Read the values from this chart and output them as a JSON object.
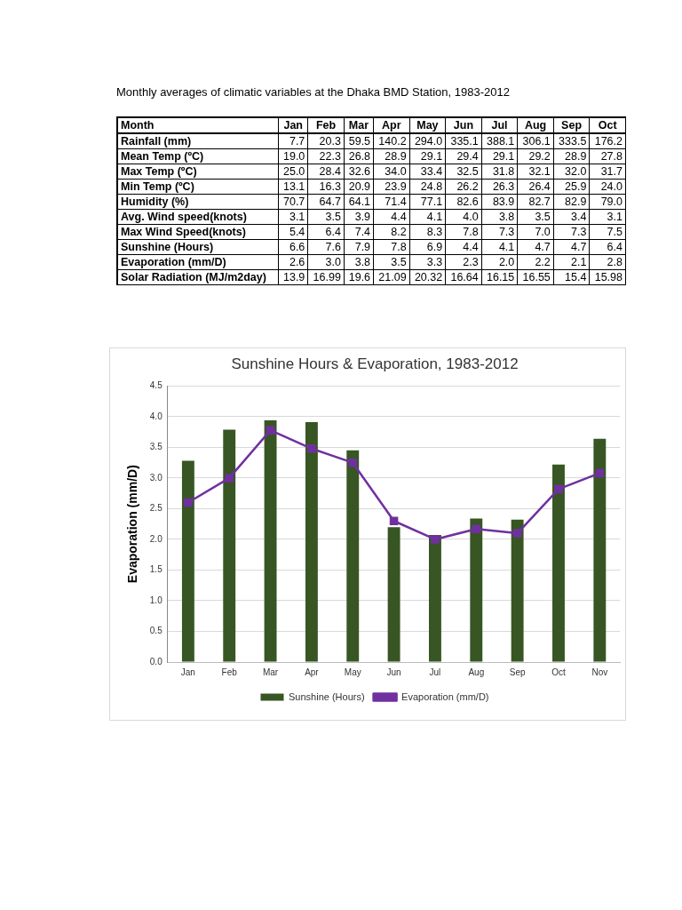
{
  "chart_data": [
    {
      "type": "other",
      "title": "Monthly averages of climatic variables at the Dhaka BMD Station, 1983-2012",
      "xlabel": "Month",
      "categories": [
        "Jan",
        "Feb",
        "Mar",
        "Apr",
        "May",
        "Jun",
        "Jul",
        "Aug",
        "Sep",
        "Oct"
      ],
      "series": [
        {
          "name": "Rainfall (mm)",
          "values": [
            7.7,
            20.3,
            59.5,
            140.2,
            294.0,
            335.1,
            388.1,
            306.1,
            333.5,
            176.2
          ],
          "value_labels": [
            "7.7",
            "20.3",
            "59.5",
            "140.2",
            "294.0",
            "335.1",
            "388.1",
            "306.1",
            "333.5",
            "176.2"
          ]
        },
        {
          "name": "Mean Temp (ºC)",
          "values": [
            19.0,
            22.3,
            26.8,
            28.9,
            29.1,
            29.4,
            29.1,
            29.2,
            28.9,
            27.8
          ],
          "value_labels": [
            "19.0",
            "22.3",
            "26.8",
            "28.9",
            "29.1",
            "29.4",
            "29.1",
            "29.2",
            "28.9",
            "27.8"
          ]
        },
        {
          "name": "Max Temp (ºC)",
          "values": [
            25.0,
            28.4,
            32.6,
            34.0,
            33.4,
            32.5,
            31.8,
            32.1,
            32.0,
            31.7
          ],
          "value_labels": [
            "25.0",
            "28.4",
            "32.6",
            "34.0",
            "33.4",
            "32.5",
            "31.8",
            "32.1",
            "32.0",
            "31.7"
          ]
        },
        {
          "name": "Min Temp (ºC)",
          "values": [
            13.1,
            16.3,
            20.9,
            23.9,
            24.8,
            26.2,
            26.3,
            26.4,
            25.9,
            24.0
          ],
          "value_labels": [
            "13.1",
            "16.3",
            "20.9",
            "23.9",
            "24.8",
            "26.2",
            "26.3",
            "26.4",
            "25.9",
            "24.0"
          ]
        },
        {
          "name": "Humidity (%)",
          "values": [
            70.7,
            64.7,
            64.1,
            71.4,
            77.1,
            82.6,
            83.9,
            82.7,
            82.9,
            79.0
          ],
          "value_labels": [
            "70.7",
            "64.7",
            "64.1",
            "71.4",
            "77.1",
            "82.6",
            "83.9",
            "82.7",
            "82.9",
            "79.0"
          ]
        },
        {
          "name": "Avg. Wind speed(knots)",
          "values": [
            3.1,
            3.5,
            3.9,
            4.4,
            4.1,
            4.0,
            3.8,
            3.5,
            3.4,
            3.1
          ],
          "value_labels": [
            "3.1",
            "3.5",
            "3.9",
            "4.4",
            "4.1",
            "4.0",
            "3.8",
            "3.5",
            "3.4",
            "3.1"
          ]
        },
        {
          "name": "Max Wind Speed(knots)",
          "values": [
            5.4,
            6.4,
            7.4,
            8.2,
            8.3,
            7.8,
            7.3,
            7.0,
            7.3,
            7.5
          ],
          "value_labels": [
            "5.4",
            "6.4",
            "7.4",
            "8.2",
            "8.3",
            "7.8",
            "7.3",
            "7.0",
            "7.3",
            "7.5"
          ]
        },
        {
          "name": "Sunshine (Hours)",
          "values": [
            6.6,
            7.6,
            7.9,
            7.8,
            6.9,
            4.4,
            4.1,
            4.7,
            4.7,
            6.4
          ],
          "value_labels": [
            "6.6",
            "7.6",
            "7.9",
            "7.8",
            "6.9",
            "4.4",
            "4.1",
            "4.7",
            "4.7",
            "6.4"
          ]
        },
        {
          "name": "Evaporation (mm/D)",
          "values": [
            2.6,
            3.0,
            3.8,
            3.5,
            3.3,
            2.3,
            2.0,
            2.2,
            2.1,
            2.8
          ],
          "value_labels": [
            "2.6",
            "3.0",
            "3.8",
            "3.5",
            "3.3",
            "2.3",
            "2.0",
            "2.2",
            "2.1",
            "2.8"
          ]
        },
        {
          "name": "Solar Radiation (MJ/m2day)",
          "values": [
            13.9,
            16.99,
            19.6,
            21.09,
            20.32,
            16.64,
            16.15,
            16.55,
            15.4,
            15.98
          ],
          "value_labels": [
            "13.9",
            "16.99",
            "19.6",
            "21.09",
            "20.32",
            "16.64",
            "16.15",
            "16.55",
            "15.4",
            "15.98"
          ]
        }
      ]
    },
    {
      "type": "bar",
      "title": "Sunshine Hours & Evaporation, 1983-2012",
      "ylabel": "Evaporation (mm/D)",
      "categories": [
        "Jan",
        "Feb",
        "Mar",
        "Apr",
        "May",
        "Jun",
        "Jul",
        "Aug",
        "Sep",
        "Oct",
        "Nov"
      ],
      "series": [
        {
          "name": "Sunshine (Hours)",
          "type": "bar",
          "color": "#375623",
          "values": [
            3.28,
            3.79,
            3.94,
            3.91,
            3.45,
            2.2,
            2.07,
            2.34,
            2.32,
            3.22,
            3.64
          ]
        },
        {
          "name": "Evaporation (mm/D)",
          "type": "line",
          "color": "#7030a0",
          "values": [
            2.6,
            3.0,
            3.78,
            3.48,
            3.25,
            2.3,
            2.0,
            2.17,
            2.1,
            2.82,
            3.08
          ]
        }
      ],
      "ylim": [
        0,
        4.5
      ],
      "yticks": [
        {
          "value": 0,
          "label": "0.0"
        },
        0.5,
        {
          "value": 1,
          "label": "1.0"
        },
        1.5,
        {
          "value": 2,
          "label": "2.0"
        },
        2.5,
        {
          "value": 3,
          "label": "3.0"
        },
        3.5,
        {
          "value": 4,
          "label": "4.0"
        },
        4.5
      ],
      "grid": "y",
      "legend": "bottom",
      "marker": "square",
      "line_style": "solid"
    }
  ]
}
